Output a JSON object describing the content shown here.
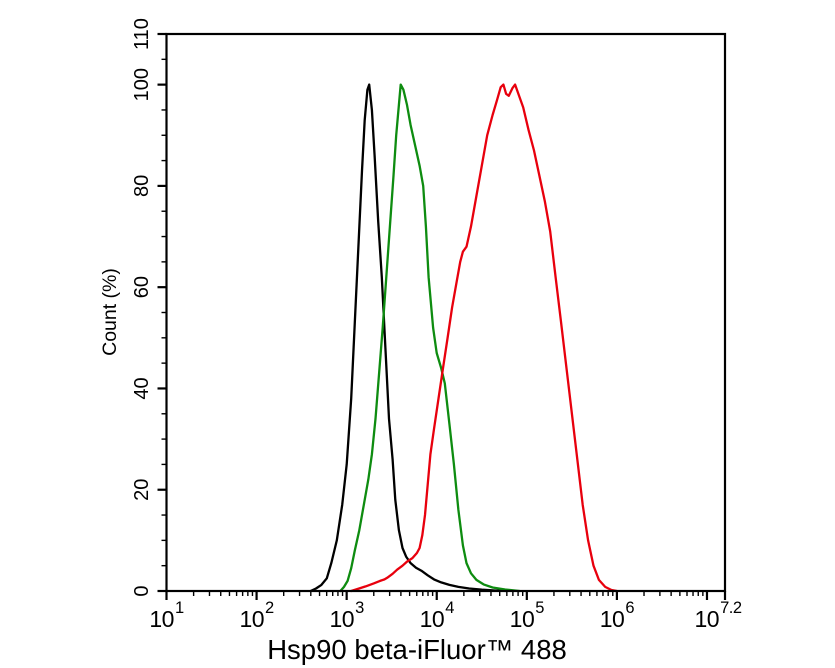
{
  "chart_data": {
    "type": "line",
    "subtype": "flow-cytometry-histogram",
    "xlabel": "Hsp90 beta-iFluor™ 488",
    "ylabel": "Count (%)",
    "x_scale": "log10",
    "x_range_log": [
      1,
      7.2
    ],
    "y_range": [
      0,
      110
    ],
    "x_major_ticks": [
      {
        "log": 1,
        "label": "10",
        "sup": "1"
      },
      {
        "log": 2,
        "label": "10",
        "sup": "2"
      },
      {
        "log": 3,
        "label": "10",
        "sup": "3"
      },
      {
        "log": 4,
        "label": "10",
        "sup": "4"
      },
      {
        "log": 5,
        "label": "10",
        "sup": "5"
      },
      {
        "log": 6,
        "label": "10",
        "sup": "6"
      },
      {
        "log": 7,
        "label": "",
        "sup": ""
      },
      {
        "log": 7.2,
        "label": "10",
        "sup": "7.2",
        "label_dx": -7
      }
    ],
    "y_major_ticks": [
      {
        "value": 0,
        "label": "0"
      },
      {
        "value": 20,
        "label": "20"
      },
      {
        "value": 40,
        "label": "40"
      },
      {
        "value": 60,
        "label": "60"
      },
      {
        "value": 80,
        "label": "80"
      },
      {
        "value": 100,
        "label": "100"
      },
      {
        "value": 110,
        "label": "110"
      }
    ],
    "y_minor_step": 5,
    "x_minor_pattern": [
      2,
      3,
      4,
      5,
      6,
      7,
      8,
      9
    ],
    "axis_color": "#000000",
    "series": [
      {
        "name": "black",
        "color": "#000000",
        "points": [
          [
            2.6,
            0
          ],
          [
            2.66,
            0.5
          ],
          [
            2.72,
            1.2
          ],
          [
            2.78,
            2.5
          ],
          [
            2.83,
            5.5
          ],
          [
            2.89,
            10
          ],
          [
            2.95,
            17
          ],
          [
            3.0,
            25
          ],
          [
            3.05,
            38
          ],
          [
            3.09,
            53
          ],
          [
            3.13,
            68
          ],
          [
            3.17,
            83
          ],
          [
            3.2,
            93
          ],
          [
            3.23,
            99
          ],
          [
            3.25,
            100
          ],
          [
            3.28,
            95
          ],
          [
            3.31,
            86
          ],
          [
            3.35,
            73
          ],
          [
            3.39,
            62
          ],
          [
            3.43,
            48
          ],
          [
            3.47,
            34
          ],
          [
            3.51,
            26
          ],
          [
            3.54,
            18
          ],
          [
            3.58,
            12
          ],
          [
            3.62,
            8.5
          ],
          [
            3.66,
            6.8
          ],
          [
            3.71,
            5.5
          ],
          [
            3.77,
            4.6
          ],
          [
            3.83,
            4.0
          ],
          [
            3.9,
            3.1
          ],
          [
            3.97,
            2.3
          ],
          [
            4.05,
            1.7
          ],
          [
            4.14,
            1.2
          ],
          [
            4.24,
            0.8
          ],
          [
            4.36,
            0.5
          ],
          [
            4.5,
            0.25
          ],
          [
            4.65,
            0.1
          ],
          [
            4.78,
            0
          ]
        ]
      },
      {
        "name": "green",
        "color": "#0e8c10",
        "points": [
          [
            2.93,
            0
          ],
          [
            2.97,
            0.8
          ],
          [
            3.01,
            2
          ],
          [
            3.05,
            4.5
          ],
          [
            3.09,
            8
          ],
          [
            3.14,
            12
          ],
          [
            3.19,
            17
          ],
          [
            3.24,
            22
          ],
          [
            3.28,
            27
          ],
          [
            3.32,
            34
          ],
          [
            3.36,
            43
          ],
          [
            3.4,
            52
          ],
          [
            3.44,
            62
          ],
          [
            3.48,
            72
          ],
          [
            3.52,
            82
          ],
          [
            3.55,
            90
          ],
          [
            3.58,
            96
          ],
          [
            3.6,
            100
          ],
          [
            3.63,
            99
          ],
          [
            3.67,
            96
          ],
          [
            3.71,
            92
          ],
          [
            3.76,
            88
          ],
          [
            3.81,
            84
          ],
          [
            3.85,
            80
          ],
          [
            3.88,
            72
          ],
          [
            3.91,
            62
          ],
          [
            3.96,
            52
          ],
          [
            4.0,
            47
          ],
          [
            4.05,
            44
          ],
          [
            4.09,
            41
          ],
          [
            4.14,
            33
          ],
          [
            4.19,
            25
          ],
          [
            4.24,
            16
          ],
          [
            4.29,
            9
          ],
          [
            4.33,
            5.5
          ],
          [
            4.38,
            3.5
          ],
          [
            4.44,
            2.2
          ],
          [
            4.52,
            1.3
          ],
          [
            4.62,
            0.7
          ],
          [
            4.76,
            0.3
          ],
          [
            4.92,
            0
          ]
        ]
      },
      {
        "name": "red",
        "color": "#e8000d",
        "points": [
          [
            3.05,
            0
          ],
          [
            3.12,
            0.4
          ],
          [
            3.21,
            0.9
          ],
          [
            3.3,
            1.5
          ],
          [
            3.37,
            2.0
          ],
          [
            3.42,
            2.3
          ],
          [
            3.45,
            2.6
          ],
          [
            3.51,
            3.4
          ],
          [
            3.56,
            4.2
          ],
          [
            3.62,
            5.0
          ],
          [
            3.67,
            5.8
          ],
          [
            3.73,
            6.5
          ],
          [
            3.78,
            7.5
          ],
          [
            3.81,
            8.5
          ],
          [
            3.84,
            11
          ],
          [
            3.87,
            15
          ],
          [
            3.9,
            21
          ],
          [
            3.93,
            27
          ],
          [
            3.97,
            32
          ],
          [
            4.02,
            38
          ],
          [
            4.07,
            44
          ],
          [
            4.12,
            50
          ],
          [
            4.17,
            56
          ],
          [
            4.22,
            61
          ],
          [
            4.26,
            65
          ],
          [
            4.29,
            67
          ],
          [
            4.33,
            68
          ],
          [
            4.38,
            72
          ],
          [
            4.44,
            78
          ],
          [
            4.5,
            84
          ],
          [
            4.56,
            90
          ],
          [
            4.62,
            94
          ],
          [
            4.67,
            97
          ],
          [
            4.71,
            99.5
          ],
          [
            4.74,
            100
          ],
          [
            4.77,
            98.2
          ],
          [
            4.8,
            97.8
          ],
          [
            4.84,
            99.3
          ],
          [
            4.87,
            100
          ],
          [
            4.91,
            98
          ],
          [
            4.96,
            95.5
          ],
          [
            5.02,
            91
          ],
          [
            5.08,
            87
          ],
          [
            5.14,
            82
          ],
          [
            5.2,
            77
          ],
          [
            5.26,
            71
          ],
          [
            5.32,
            62
          ],
          [
            5.38,
            53
          ],
          [
            5.44,
            44
          ],
          [
            5.5,
            35
          ],
          [
            5.56,
            26
          ],
          [
            5.62,
            17
          ],
          [
            5.68,
            10
          ],
          [
            5.74,
            5
          ],
          [
            5.8,
            2.2
          ],
          [
            5.87,
            0.8
          ],
          [
            5.94,
            0.2
          ],
          [
            6.0,
            0
          ]
        ]
      }
    ]
  }
}
